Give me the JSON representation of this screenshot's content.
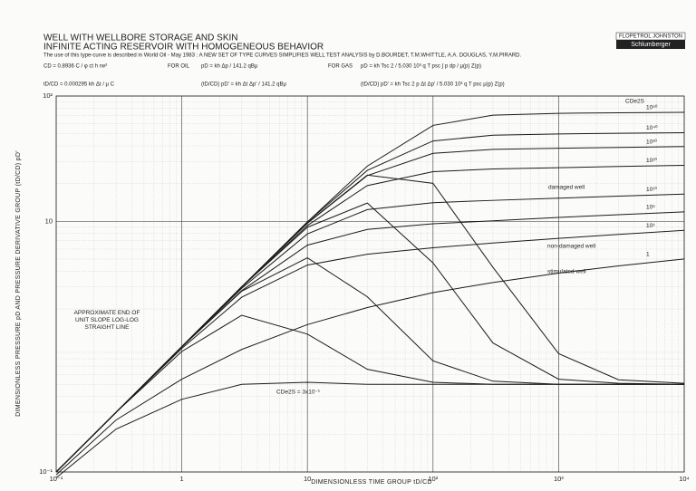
{
  "chart_data": {
    "type": "line",
    "title": "WELL WITH WELLBORE STORAGE AND SKIN",
    "subtitle": "INFINITE ACTING RESERVOIR WITH HOMOGENEOUS BEHAVIOR",
    "note": "The use of this type-curve is described in World Oil - May 1983 : A NEW SET OF TYPE CURVES SIMPLIFIES WELL TEST ANALYSIS by D.BOURDET, T.M.WHITTLE, A.A. DOUGLAS, Y.M.PIRARD.",
    "logo": [
      "FLOPETROL JOHNSTON",
      "Schlumberger"
    ],
    "formulas": [
      "CD = 0.8936 C / φ ct h rw²",
      "tD/CD = 0.000295 kh Δt / μ C",
      "FOR OIL",
      "pD = kh Δp / 141.2 qBμ",
      "(tD/CD) pD' = kh Δt Δp' / 141.2 qBμ",
      "FOR GAS",
      "pD = kh Tsc 2 / 5.030 10³ q T psc ∫ p dp / μ(p) Z(p)",
      "(tD/CD) pD' = kh Tsc 2 p Δt Δp' / 5.030 10³ q T psc μ(p) Z(p)"
    ],
    "ylabel": "DIMENSIONLESS PRESSURE  pD  AND PRESSURE DERIVATIVE GROUP  (tD/CD) pD'",
    "xlabel": "DIMENSIONLESS TIME GROUP  tD/CD",
    "log_x": true,
    "log_y": true,
    "grid": true,
    "minor_grid": true,
    "xlim": [
      0.1,
      10000
    ],
    "ylim": [
      0.1,
      100
    ],
    "xticks": [
      {
        "value": 0.1,
        "label": "10⁻¹"
      },
      1,
      10,
      {
        "value": 100,
        "label": "10²"
      },
      {
        "value": 1000,
        "label": "10³"
      },
      {
        "value": 10000,
        "label": "10⁴"
      }
    ],
    "yticks": [
      {
        "value": 0.1,
        "label": "10⁻¹"
      },
      10,
      {
        "value": 100,
        "label": "10²"
      }
    ],
    "color": "#1a1a1a",
    "x": [
      0.1,
      0.3,
      1,
      3,
      10,
      30,
      100,
      300,
      1000,
      3000,
      10000
    ],
    "series": [
      {
        "name": "10⁶⁰",
        "values": [
          0.1,
          0.3,
          1,
          3,
          9.9,
          27.6,
          58.3,
          70.3,
          72.8,
          73.5,
          74.1
        ]
      },
      {
        "name": "10⁴⁰",
        "values": [
          0.1,
          0.3,
          1,
          3,
          9.89,
          25.5,
          43.8,
          48.7,
          49.8,
          50.4,
          51.0
        ]
      },
      {
        "name": "10³⁰",
        "values": [
          0.1,
          0.3,
          1,
          3,
          9.64,
          23.2,
          34.9,
          37.5,
          38.3,
          38.9,
          39.5
        ]
      },
      {
        "name": "10²⁰",
        "values": [
          0.1,
          0.3,
          1,
          2.98,
          9.26,
          19.3,
          24.9,
          26.2,
          26.8,
          27.4,
          28.0
        ]
      },
      {
        "name": "10¹⁰",
        "values": [
          0.1,
          0.3,
          0.996,
          2.92,
          7.94,
          12.4,
          14.1,
          14.7,
          15.3,
          15.9,
          16.5
        ]
      },
      {
        "name": "10⁶",
        "values": [
          0.1,
          0.3,
          0.993,
          2.8,
          6.46,
          8.62,
          9.56,
          10.1,
          10.75,
          11.3,
          11.9
        ]
      },
      {
        "name": "10³",
        "values": [
          0.1,
          0.299,
          0.968,
          2.48,
          4.48,
          5.47,
          6.16,
          6.71,
          7.31,
          7.87,
          8.47
        ]
      },
      {
        "name": "1",
        "values": [
          0.095,
          0.26,
          0.55,
          0.95,
          1.5,
          2.05,
          2.7,
          3.25,
          3.86,
          4.41,
          5.01
        ]
      }
    ],
    "derivatives": [
      {
        "values": [
          0.1,
          0.3,
          1,
          3,
          9.7,
          23.4,
          20.1,
          4.3,
          0.88,
          0.544,
          0.51
        ]
      },
      {
        "values": [
          0.1,
          0.3,
          1,
          3,
          8.97,
          14.0,
          4.66,
          1.07,
          0.55,
          0.51,
          0.5
        ]
      },
      {
        "values": [
          0.1,
          0.3,
          1,
          2.77,
          5.12,
          2.5,
          0.77,
          0.53,
          0.5,
          0.5,
          0.5
        ]
      },
      {
        "values": [
          0.1,
          0.3,
          0.915,
          1.78,
          1.26,
          0.66,
          0.52,
          0.5,
          0.5,
          0.5,
          0.5
        ]
      },
      {
        "values": [
          0.09,
          0.22,
          0.38,
          0.5,
          0.52,
          0.5,
          0.5,
          0.5,
          0.5,
          0.5,
          0.5
        ]
      }
    ],
    "annotations": [
      "CDe2S",
      "damaged well",
      "non-damaged well",
      "stimulated well",
      "APPROXIMATE END OF UNIT SLOPE LOG-LOG STRAIGHT LINE",
      "CDe2S = 3x10⁻¹"
    ]
  }
}
